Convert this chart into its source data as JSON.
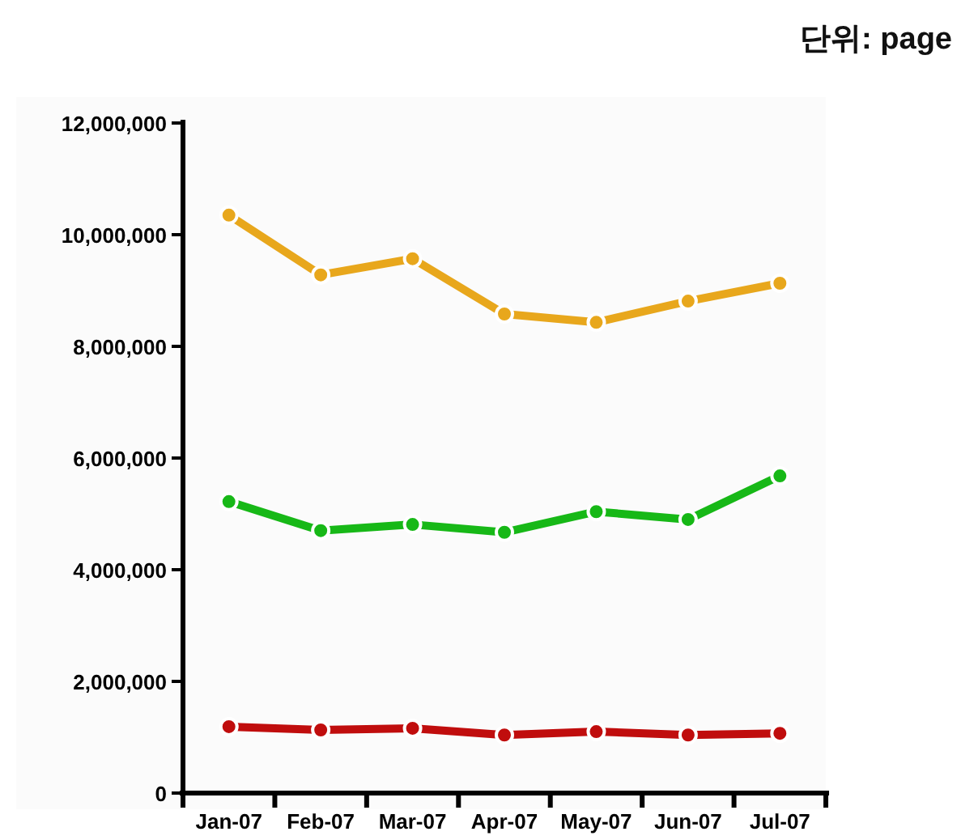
{
  "chart_data": {
    "type": "line",
    "subtitle": "단위: page",
    "categories": [
      "Jan-07",
      "Feb-07",
      "Mar-07",
      "Apr-07",
      "May-07",
      "Jun-07",
      "Jul-07"
    ],
    "series": [
      {
        "color": "#e8a71c",
        "values": [
          10350000,
          9280000,
          9570000,
          8580000,
          8430000,
          8810000,
          9130000
        ]
      },
      {
        "color": "#17b817",
        "values": [
          5220000,
          4700000,
          4810000,
          4670000,
          5040000,
          4900000,
          5680000
        ]
      },
      {
        "color": "#c00d0d",
        "values": [
          1190000,
          1130000,
          1160000,
          1040000,
          1100000,
          1040000,
          1070000
        ]
      }
    ],
    "ylim": [
      0,
      12000000
    ],
    "yticks": [
      {
        "value": 0,
        "label": "0"
      },
      {
        "value": 2000000,
        "label": "2,000,000"
      },
      {
        "value": 4000000,
        "label": "4,000,000"
      },
      {
        "value": 6000000,
        "label": "6,000,000"
      },
      {
        "value": 8000000,
        "label": "8,000,000"
      },
      {
        "value": 10000000,
        "label": "10,000,000"
      },
      {
        "value": 12000000,
        "label": "12,000,000"
      }
    ],
    "grid": false,
    "marker": "circle",
    "line_style": "solid"
  }
}
